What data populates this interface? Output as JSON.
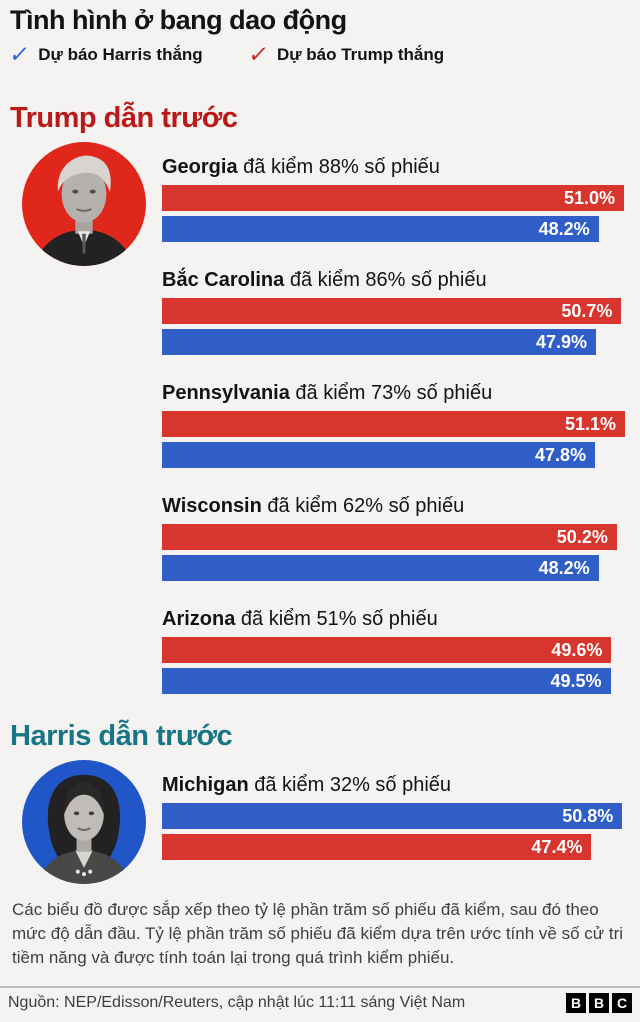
{
  "title": "Tình hình ở bang dao động",
  "legend": [
    {
      "id": "harris",
      "label": "Dự báo Harris thắng",
      "color": "#2e62d9"
    },
    {
      "id": "trump",
      "label": "Dự báo Trump thắng",
      "color": "#cf281b"
    }
  ],
  "colors": {
    "rep": "#d7352d",
    "dem": "#2f5ec9",
    "trump_circle": "#e0271c",
    "harris_circle": "#2156c8"
  },
  "sections": [
    {
      "id": "trump-lead",
      "heading": "Trump dẫn trước",
      "heading_color": "#bb1919",
      "avatar": {
        "person": "trump",
        "bg": "#e0271c"
      },
      "states": [
        {
          "name": "Georgia",
          "suffix": "đã kiểm 88% số phiếu",
          "bars": [
            {
              "party": "rep",
              "value": 51.0,
              "label": "51.0%"
            },
            {
              "party": "dem",
              "value": 48.2,
              "label": "48.2%"
            }
          ]
        },
        {
          "name": "Bắc Carolina",
          "suffix": "đã kiểm 86% số phiếu",
          "bars": [
            {
              "party": "rep",
              "value": 50.7,
              "label": "50.7%"
            },
            {
              "party": "dem",
              "value": 47.9,
              "label": "47.9%"
            }
          ]
        },
        {
          "name": "Pennsylvania",
          "suffix": "đã kiểm 73% số phiếu",
          "bars": [
            {
              "party": "rep",
              "value": 51.1,
              "label": "51.1%"
            },
            {
              "party": "dem",
              "value": 47.8,
              "label": "47.8%"
            }
          ]
        },
        {
          "name": "Wisconsin",
          "suffix": "đã kiểm 62% số phiếu",
          "bars": [
            {
              "party": "rep",
              "value": 50.2,
              "label": "50.2%"
            },
            {
              "party": "dem",
              "value": 48.2,
              "label": "48.2%"
            }
          ]
        },
        {
          "name": "Arizona",
          "suffix": "đã kiểm 51% số phiếu",
          "bars": [
            {
              "party": "rep",
              "value": 49.6,
              "label": "49.6%"
            },
            {
              "party": "dem",
              "value": 49.5,
              "label": "49.5%"
            }
          ]
        }
      ]
    },
    {
      "id": "harris-lead",
      "heading": "Harris dẫn trước",
      "heading_color": "#187586",
      "avatar": {
        "person": "harris",
        "bg": "#2156c8"
      },
      "states": [
        {
          "name": "Michigan",
          "suffix": "đã kiểm 32% số phiếu",
          "bars": [
            {
              "party": "dem",
              "value": 50.8,
              "label": "50.8%"
            },
            {
              "party": "rep",
              "value": 47.4,
              "label": "47.4%"
            }
          ]
        }
      ]
    }
  ],
  "footnote": "Các biểu đồ được sắp xếp theo tỷ lệ phần trăm số phiếu đã kiểm, sau đó theo mức độ dẫn đầu. Tỷ lệ phần trăm số phiếu đã kiểm dựa trên ước tính về số cử tri tiềm năng và được tính toán lại trong quá trình kiểm phiếu.",
  "source": "Nguồn: NEP/Edisson/Reuters, cập nhật lúc 11:11 sáng Việt Nam",
  "logo": [
    "B",
    "B",
    "C"
  ],
  "chart_data": {
    "type": "bar",
    "orientation": "horizontal",
    "title": "Tình hình ở bang dao động",
    "legend": [
      "Dự báo Harris thắng",
      "Dự báo Trump thắng"
    ],
    "xlim": [
      0,
      51.1
    ],
    "groups": [
      {
        "section": "Trump dẫn trước",
        "states": [
          {
            "state": "Georgia",
            "counted_pct": 88,
            "trump": 51.0,
            "harris": 48.2
          },
          {
            "state": "Bắc Carolina",
            "counted_pct": 86,
            "trump": 50.7,
            "harris": 47.9
          },
          {
            "state": "Pennsylvania",
            "counted_pct": 73,
            "trump": 51.1,
            "harris": 47.8
          },
          {
            "state": "Wisconsin",
            "counted_pct": 62,
            "trump": 50.2,
            "harris": 48.2
          },
          {
            "state": "Arizona",
            "counted_pct": 51,
            "trump": 49.6,
            "harris": 49.5
          }
        ]
      },
      {
        "section": "Harris dẫn trước",
        "states": [
          {
            "state": "Michigan",
            "counted_pct": 32,
            "harris": 50.8,
            "trump": 47.4
          }
        ]
      }
    ]
  }
}
